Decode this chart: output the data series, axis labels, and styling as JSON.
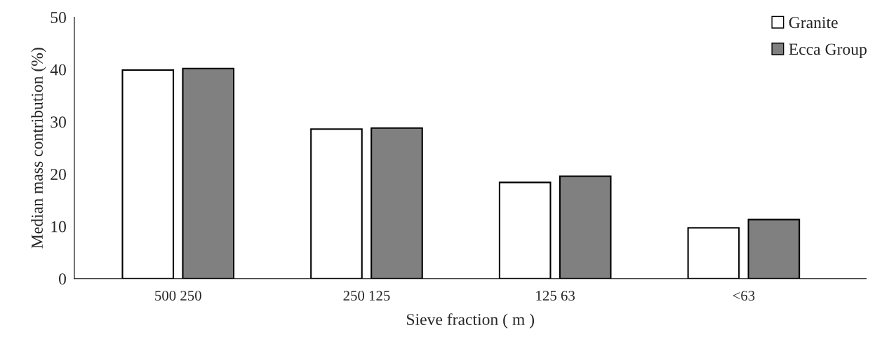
{
  "chart_data": {
    "type": "bar",
    "xlabel": "Sieve fraction ( m )",
    "ylabel": "Median mass contribution (%)",
    "categories": [
      "500 250",
      "250 125",
      "125 63",
      "<63"
    ],
    "series": [
      {
        "name": "Granite",
        "color": "#ffffff",
        "values": [
          39.9,
          28.6,
          18.4,
          9.7
        ]
      },
      {
        "name": "Ecca Group",
        "color": "#808080",
        "values": [
          40.2,
          28.8,
          19.6,
          11.3
        ]
      }
    ],
    "ylim": [
      0,
      50
    ],
    "yticks": [
      0,
      10,
      20,
      30,
      40,
      50
    ],
    "grid": false,
    "legend": "top right"
  }
}
